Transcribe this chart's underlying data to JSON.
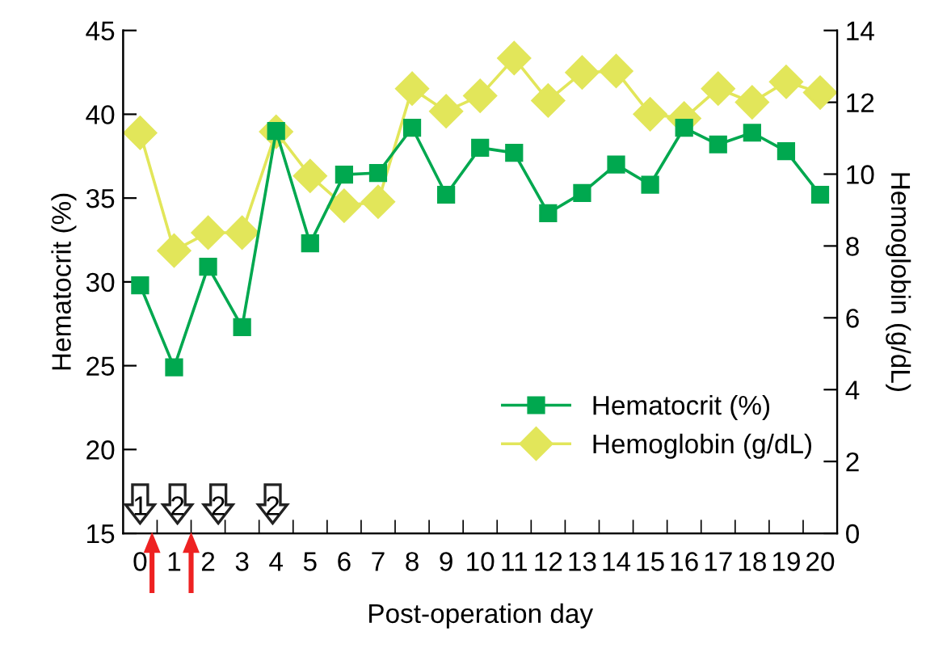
{
  "chart_data": {
    "type": "line",
    "xlabel": "Post-operation day",
    "ylabel": "Hematocrit (%)",
    "y2label": "Hemoglobin (g/dL)",
    "categories": [
      "0",
      "1",
      "2",
      "3",
      "4",
      "5",
      "6",
      "7",
      "8",
      "9",
      "10",
      "11",
      "12",
      "13",
      "14",
      "15",
      "16",
      "17",
      "18",
      "19",
      "20"
    ],
    "series": [
      {
        "name": "Hematocrit (%)",
        "color": "#00a84f",
        "marker": "square",
        "values": [
          29.8,
          24.9,
          30.9,
          27.3,
          39.0,
          32.3,
          36.4,
          36.5,
          39.2,
          35.2,
          38.0,
          37.7,
          34.1,
          35.3,
          37.0,
          35.8,
          39.2,
          38.2,
          38.9,
          37.8,
          35.2
        ]
      },
      {
        "name": "Hemoglobin (g/dL)",
        "color": "#e2e65a",
        "marker": "diamond",
        "axis": "y2",
        "values": [
          11.15,
          7.87,
          8.37,
          8.37,
          11.18,
          9.95,
          9.12,
          9.23,
          12.38,
          11.75,
          12.18,
          13.23,
          12.05,
          12.83,
          12.87,
          11.67,
          11.55,
          12.38,
          12.0,
          12.57,
          12.27
        ]
      }
    ],
    "ylim": [
      15,
      45
    ],
    "yticks": [
      15,
      20,
      25,
      30,
      35,
      40,
      45
    ],
    "y2lim": [
      0,
      14
    ],
    "y2ticks": [
      0,
      2,
      4,
      6,
      8,
      10,
      12,
      14
    ],
    "annotations": [
      "1",
      "2",
      "2",
      "2"
    ],
    "legend": "bottom right",
    "grid": false
  }
}
